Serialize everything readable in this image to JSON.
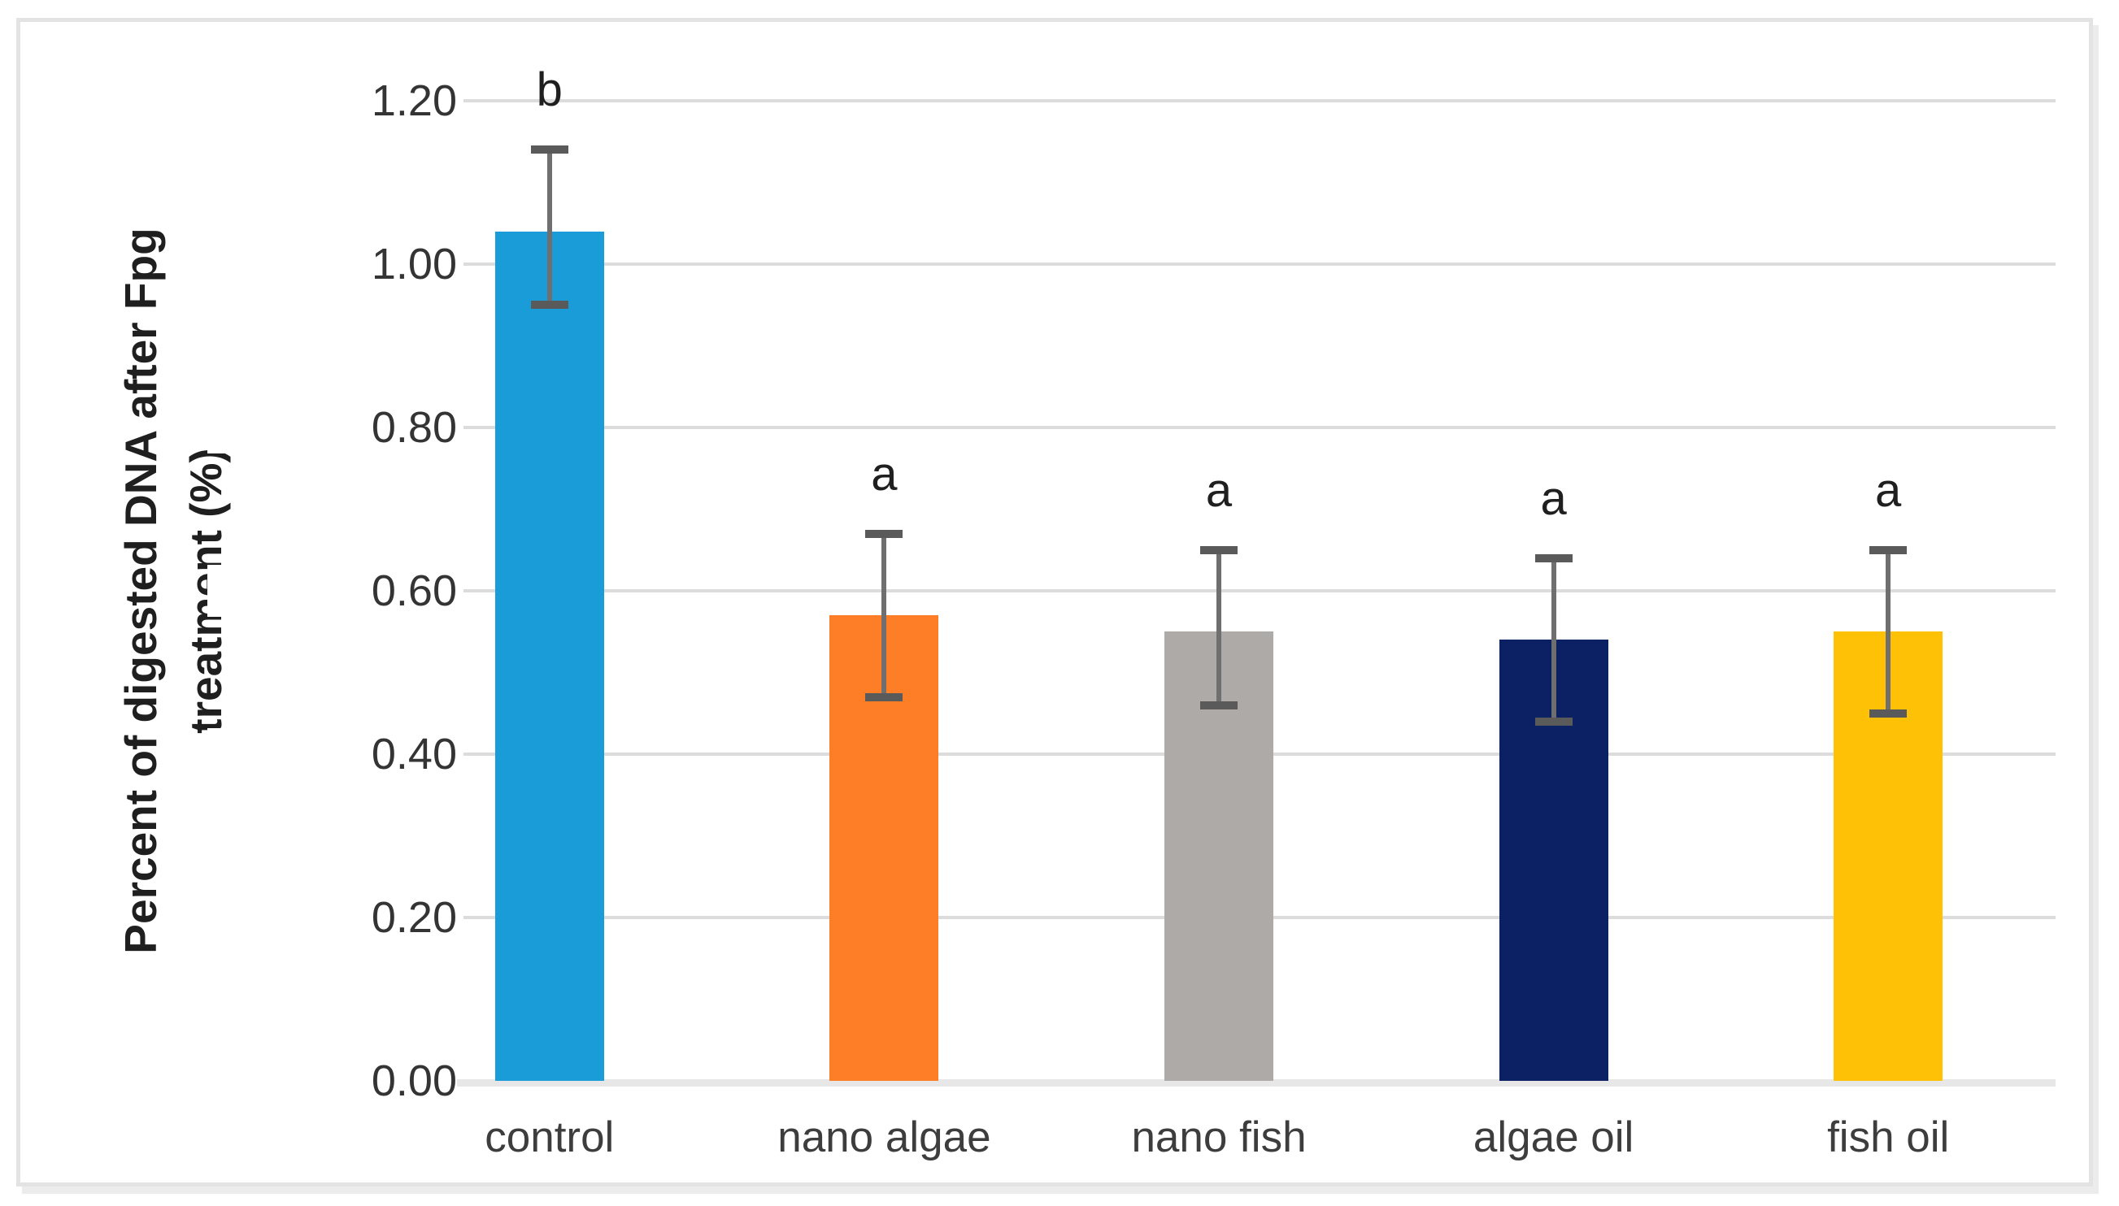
{
  "figure": {
    "background_color": "#ffffff",
    "frame_border_color": "#e3e3e3"
  },
  "chart_data": {
    "type": "bar",
    "title": "",
    "xlabel": "",
    "ylabel": "Percent of digested DNA after Fpg treatment (%)",
    "ylabel_lines": [
      "Percent of digested DNA after Fpg",
      "treatment (%)"
    ],
    "categories": [
      "control",
      "nano algae",
      "nano fish",
      "algae oil",
      "fish oil"
    ],
    "values": [
      1.04,
      0.57,
      0.55,
      0.54,
      0.55
    ],
    "error_bars": {
      "upper": [
        1.14,
        0.67,
        0.65,
        0.64,
        0.65
      ],
      "lower": [
        0.95,
        0.47,
        0.46,
        0.44,
        0.45
      ]
    },
    "significance_letters": [
      "b",
      "a",
      "a",
      "a",
      "a"
    ],
    "bar_colors": [
      "#1a9cd8",
      "#fd7e26",
      "#aeaaa8",
      "#0b2164",
      "#ffc105"
    ],
    "ylim": [
      0,
      1.2
    ],
    "ytick_labels": [
      "0.00",
      "0.20",
      "0.40",
      "0.60",
      "0.80",
      "1.00",
      "1.20"
    ],
    "ytick_values": [
      0.0,
      0.2,
      0.4,
      0.6,
      0.8,
      1.0,
      1.2
    ],
    "grid": true,
    "legend": false,
    "gridline_color": "#dcdcdc",
    "axis_line_color": "#e7e7e7",
    "error_bar_color": "#6f6f6f",
    "tick_text_color": "#343434"
  }
}
